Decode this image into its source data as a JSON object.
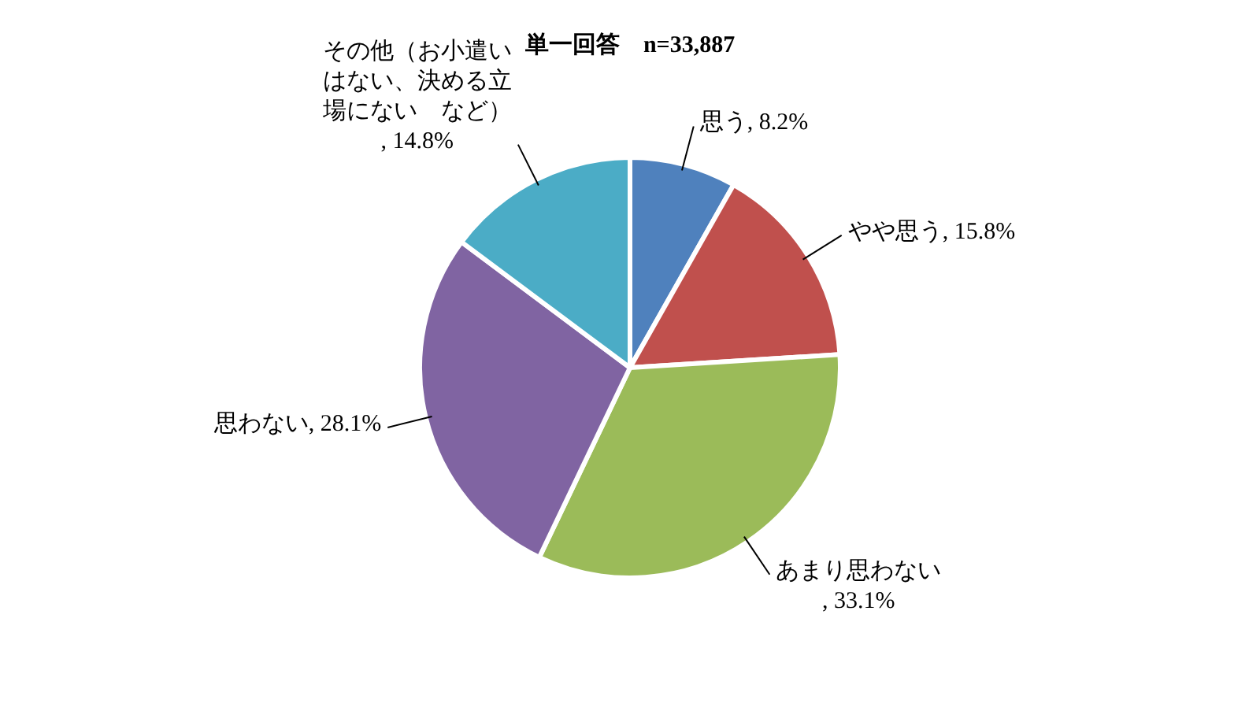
{
  "chart_data": {
    "type": "pie",
    "title": "単一回答　n=33,887",
    "categories": [
      "思う",
      "やや思う",
      "あまり思わない",
      "思わない",
      "その他（お小遣いはない、決める立場にない　など）"
    ],
    "values": [
      8.2,
      15.8,
      33.1,
      28.1,
      14.8
    ],
    "value_labels": [
      ", 8.2%",
      ", 15.8%",
      ", 33.1%",
      ", 28.1%",
      ", 14.8%"
    ],
    "colors": [
      "#4f81bd",
      "#c0504d",
      "#9bbb59",
      "#8064a2",
      "#4bacc6"
    ],
    "legend": false
  }
}
